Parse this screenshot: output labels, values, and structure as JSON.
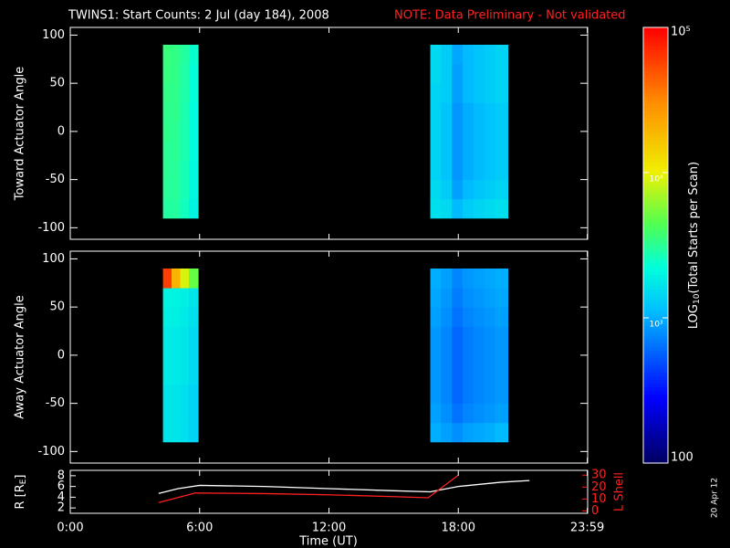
{
  "chart_data": {
    "type": "spectrogram",
    "title": "TWINS1: Start Counts:  2 Jul (day 184), 2008",
    "note": "NOTE: Data Preliminary - Not validated",
    "x_label": "Time (UT)",
    "xlim": [
      0,
      24
    ],
    "xticks": [
      {
        "value": 0,
        "label": "0:00"
      },
      {
        "value": 6,
        "label": "6:00"
      },
      {
        "value": 12,
        "label": "12:00"
      },
      {
        "value": 18,
        "label": "18:00"
      },
      {
        "value": 23.983,
        "label": "23:59"
      }
    ],
    "side_text": "20 Apr 12",
    "colorbar": {
      "label_parts": [
        "LOG",
        "10",
        "(Total Starts per Scan)"
      ],
      "log": true,
      "lim": [
        100,
        100000
      ],
      "ticks": [
        100,
        {
          "value": 1000,
          "label": "10³"
        },
        {
          "value": 10000,
          "label": "10⁴"
        },
        {
          "value": 100000,
          "label": "10⁵"
        }
      ]
    },
    "panels": [
      {
        "y_label": "Toward Actuator Angle",
        "ylim": [
          -112,
          108
        ],
        "yticks": [
          -100,
          -50,
          0,
          50,
          100
        ],
        "angle_edges": [
          -90,
          -70,
          -50,
          -30,
          -10,
          10,
          30,
          50,
          70,
          90
        ],
        "blocks": [
          {
            "x_edges": [
              4.3,
              4.7,
              5.1,
              5.5,
              5.93
            ],
            "values": [
              [
                3000,
                3100,
                3200,
                3200,
                3300,
                3300,
                3400,
                3500,
                3600
              ],
              [
                3000,
                3100,
                3100,
                3200,
                3200,
                3300,
                3300,
                3400,
                3400
              ],
              [
                2600,
                2700,
                2700,
                2800,
                2800,
                2800,
                2900,
                2900,
                3000
              ],
              [
                2000,
                2100,
                2100,
                2200,
                2200,
                2200,
                2300,
                2300,
                2400
              ]
            ]
          },
          {
            "x_edges": [
              16.7,
              17.2,
              17.7,
              18.2,
              18.7,
              19.2,
              19.7,
              20.3
            ],
            "values": [
              [
                1600,
                1500,
                1400,
                1400,
                1400,
                1400,
                1400,
                1500,
                1500
              ],
              [
                1500,
                1300,
                1200,
                1200,
                1200,
                1200,
                1300,
                1300,
                1300
              ],
              [
                1100,
                900,
                850,
                850,
                850,
                850,
                900,
                900,
                950
              ],
              [
                1300,
                1100,
                1000,
                1000,
                1000,
                1000,
                1100,
                1100,
                1100
              ],
              [
                1400,
                1200,
                1100,
                1100,
                1100,
                1100,
                1200,
                1200,
                1200
              ],
              [
                1500,
                1300,
                1200,
                1200,
                1200,
                1200,
                1300,
                1300,
                1300
              ],
              [
                1600,
                1400,
                1300,
                1300,
                1300,
                1300,
                1400,
                1400,
                1400
              ]
            ]
          }
        ]
      },
      {
        "y_label": "Away Actuator Angle",
        "ylim": [
          -112,
          108
        ],
        "yticks": [
          -100,
          -50,
          0,
          50,
          100
        ],
        "angle_edges": [
          -90,
          -70,
          -50,
          -30,
          -10,
          10,
          30,
          50,
          70,
          90
        ],
        "blocks": [
          {
            "x_edges": [
              4.3,
              4.7,
              5.1,
              5.5,
              5.93
            ],
            "values": [
              [
                1700,
                1700,
                1700,
                1800,
                1800,
                1800,
                1900,
                2000,
                60000
              ],
              [
                1700,
                1700,
                1700,
                1800,
                1800,
                1800,
                1900,
                2000,
                20000
              ],
              [
                1600,
                1600,
                1600,
                1700,
                1700,
                1700,
                1800,
                1900,
                9000
              ],
              [
                1400,
                1400,
                1400,
                1500,
                1500,
                1500,
                1600,
                1700,
                5000
              ]
            ]
          },
          {
            "x_edges": [
              16.7,
              17.2,
              17.7,
              18.2,
              18.7,
              19.2,
              19.7,
              20.3
            ],
            "values": [
              [
                1000,
                900,
                850,
                850,
                850,
                850,
                900,
                950,
                1000
              ],
              [
                900,
                800,
                750,
                750,
                750,
                750,
                800,
                850,
                900
              ],
              [
                800,
                650,
                600,
                600,
                600,
                600,
                650,
                700,
                750
              ],
              [
                900,
                750,
                700,
                700,
                700,
                700,
                750,
                800,
                850
              ],
              [
                950,
                800,
                750,
                750,
                750,
                750,
                800,
                850,
                900
              ],
              [
                1000,
                850,
                800,
                800,
                800,
                800,
                850,
                900,
                950
              ],
              [
                1100,
                900,
                850,
                850,
                850,
                850,
                900,
                950,
                1000
              ]
            ]
          }
        ]
      }
    ],
    "orbit": {
      "y_label_parts": [
        "R [R",
        "E",
        "]"
      ],
      "ylim": [
        1,
        9
      ],
      "yticks": [
        2,
        4,
        6,
        8
      ],
      "y2_label": "L Shell",
      "y2lim": [
        -2,
        34
      ],
      "y2ticks": [
        0,
        10,
        20,
        30
      ],
      "series": [
        {
          "name": "R",
          "color": "#ffffff",
          "x": [
            4.1,
            5,
            6,
            9,
            12,
            15,
            16.7,
            18,
            20,
            21.3
          ],
          "values": [
            4.7,
            5.6,
            6.2,
            6.0,
            5.6,
            5.2,
            5.0,
            6.0,
            6.8,
            7.1
          ]
        },
        {
          "name": "L Shell",
          "color": "#ff2020",
          "axis": "y2",
          "x": [
            4.1,
            5.8,
            9,
            12,
            15,
            16.6,
            18
          ],
          "values": [
            7,
            15,
            14.5,
            13.5,
            12,
            11,
            30
          ]
        }
      ]
    }
  }
}
